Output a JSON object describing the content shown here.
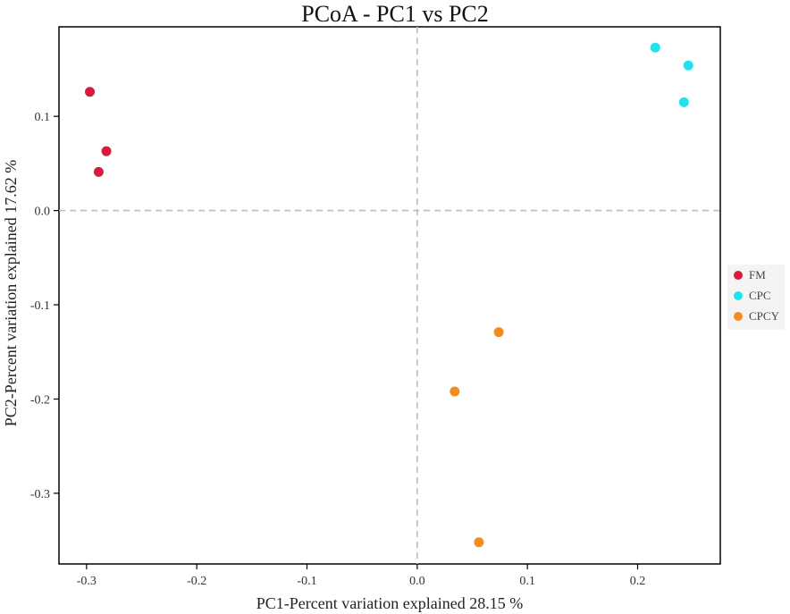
{
  "chart_data": {
    "type": "scatter",
    "title": "PCoA - PC1 vs PC2",
    "xlabel": "PC1-Percent variation explained 28.15 %",
    "ylabel": "PC2-Percent variation explained 17.62 %",
    "xlim": [
      -0.325,
      0.275
    ],
    "ylim": [
      -0.375,
      0.195
    ],
    "xticks": [
      -0.3,
      -0.2,
      -0.1,
      0.0,
      0.1,
      0.2
    ],
    "xtick_labels": [
      "-0.3",
      "-0.2",
      "-0.1",
      "0.0",
      "0.1",
      "0.2"
    ],
    "yticks": [
      -0.3,
      -0.2,
      -0.1,
      0.0,
      0.1
    ],
    "ytick_labels": [
      "-0.3",
      "-0.2",
      "-0.1",
      "0.0",
      "0.1"
    ],
    "grid": false,
    "reference_lines": {
      "x": 0,
      "y": 0
    },
    "legend_position": "right",
    "series": [
      {
        "name": "FM",
        "color": "#d81b3c",
        "points": [
          [
            -0.297,
            0.126
          ],
          [
            -0.282,
            0.063
          ],
          [
            -0.289,
            0.041
          ]
        ]
      },
      {
        "name": "CPC",
        "color": "#22e1ee",
        "points": [
          [
            0.216,
            0.173
          ],
          [
            0.246,
            0.154
          ],
          [
            0.242,
            0.115
          ]
        ]
      },
      {
        "name": "CPCY",
        "color": "#f28c1a",
        "points": [
          [
            0.074,
            -0.129
          ],
          [
            0.034,
            -0.192
          ],
          [
            0.056,
            -0.352
          ]
        ]
      }
    ]
  }
}
